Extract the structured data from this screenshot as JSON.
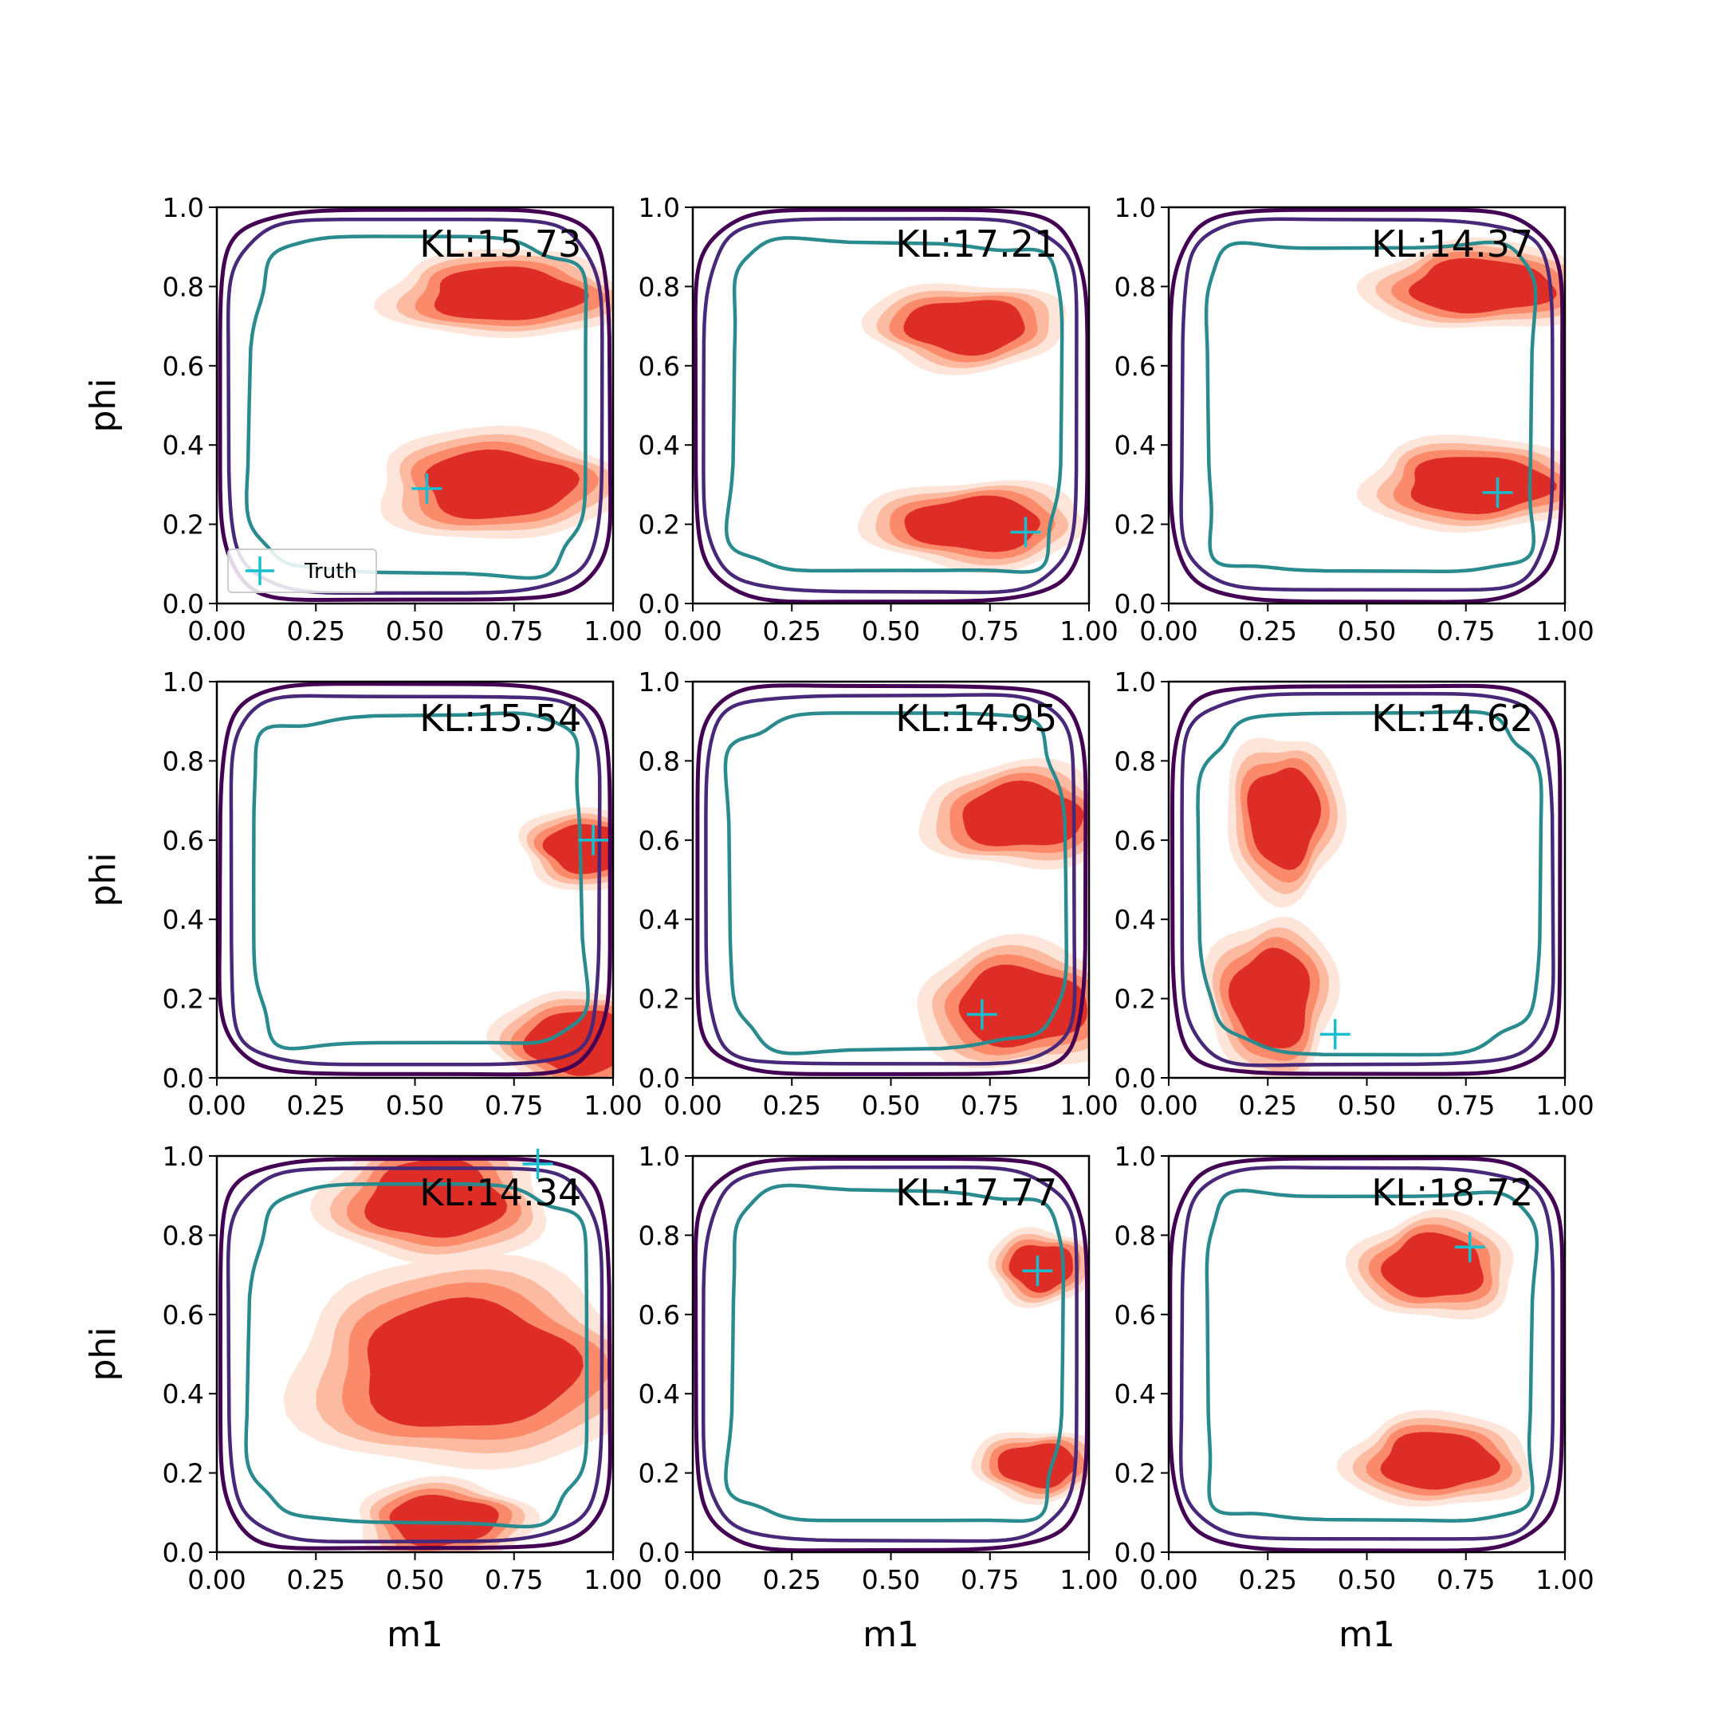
{
  "chart_data": {
    "type": "contour_grid",
    "rows": 3,
    "cols": 3,
    "xlabel": "m1",
    "ylabel": "phi",
    "xlim": [
      0,
      1
    ],
    "ylim": [
      0,
      1
    ],
    "xticks": [
      "0.00",
      "0.25",
      "0.50",
      "0.75",
      "1.00"
    ],
    "yticks": [
      "0.0",
      "0.2",
      "0.4",
      "0.6",
      "0.8",
      "1.0"
    ],
    "legend": {
      "label": "Truth",
      "location": "lower-left",
      "panel": 0
    },
    "colors": {
      "truth_marker": "#17becf",
      "blob_outer": "#fee5d9",
      "blob_mid": "#fcbba1",
      "blob_inner": "#fb8a6a",
      "blob_core": "#de2d26",
      "contour_outer": "#440154",
      "contour_second": "#482878",
      "contour_inner": "#2a8b8f"
    },
    "panels": [
      {
        "kl": "KL:15.73",
        "truth": [
          0.53,
          0.29
        ],
        "blobs": [
          {
            "x": 0.73,
            "y": 0.78,
            "rx": 0.21,
            "ry": 0.075
          },
          {
            "x": 0.71,
            "y": 0.3,
            "rx": 0.21,
            "ry": 0.095
          }
        ]
      },
      {
        "kl": "KL:17.21",
        "truth": [
          0.84,
          0.18
        ],
        "blobs": [
          {
            "x": 0.69,
            "y": 0.7,
            "rx": 0.17,
            "ry": 0.075
          },
          {
            "x": 0.71,
            "y": 0.2,
            "rx": 0.19,
            "ry": 0.075
          }
        ]
      },
      {
        "kl": "KL:14.37",
        "truth": [
          0.83,
          0.28
        ],
        "blobs": [
          {
            "x": 0.79,
            "y": 0.8,
            "rx": 0.2,
            "ry": 0.075
          },
          {
            "x": 0.78,
            "y": 0.3,
            "rx": 0.2,
            "ry": 0.08
          }
        ]
      },
      {
        "kl": "KL:15.54",
        "truth": [
          0.95,
          0.6
        ],
        "blobs": [
          {
            "x": 0.93,
            "y": 0.58,
            "rx": 0.11,
            "ry": 0.07
          },
          {
            "x": 0.91,
            "y": 0.09,
            "rx": 0.14,
            "ry": 0.09
          }
        ]
      },
      {
        "kl": "KL:14.95",
        "truth": [
          0.73,
          0.16
        ],
        "blobs": [
          {
            "x": 0.83,
            "y": 0.66,
            "rx": 0.17,
            "ry": 0.09
          },
          {
            "x": 0.83,
            "y": 0.18,
            "rx": 0.18,
            "ry": 0.11
          }
        ]
      },
      {
        "kl": "KL:14.62",
        "truth": [
          0.42,
          0.11
        ],
        "blobs": [
          {
            "x": 0.29,
            "y": 0.66,
            "rx": 0.1,
            "ry": 0.14
          },
          {
            "x": 0.26,
            "y": 0.2,
            "rx": 0.11,
            "ry": 0.14
          }
        ]
      },
      {
        "kl": "KL:14.34",
        "truth": [
          0.81,
          0.98
        ],
        "blobs": [
          {
            "x": 0.55,
            "y": 0.89,
            "rx": 0.19,
            "ry": 0.11
          },
          {
            "x": 0.63,
            "y": 0.47,
            "rx": 0.3,
            "ry": 0.18
          },
          {
            "x": 0.57,
            "y": 0.08,
            "rx": 0.15,
            "ry": 0.07
          }
        ]
      },
      {
        "kl": "KL:17.77",
        "truth": [
          0.87,
          0.71
        ],
        "blobs": [
          {
            "x": 0.88,
            "y": 0.72,
            "rx": 0.09,
            "ry": 0.065
          },
          {
            "x": 0.87,
            "y": 0.22,
            "rx": 0.11,
            "ry": 0.06
          }
        ]
      },
      {
        "kl": "KL:18.72",
        "truth": [
          0.76,
          0.77
        ],
        "blobs": [
          {
            "x": 0.67,
            "y": 0.72,
            "rx": 0.14,
            "ry": 0.09
          },
          {
            "x": 0.68,
            "y": 0.23,
            "rx": 0.16,
            "ry": 0.08
          }
        ]
      }
    ]
  }
}
